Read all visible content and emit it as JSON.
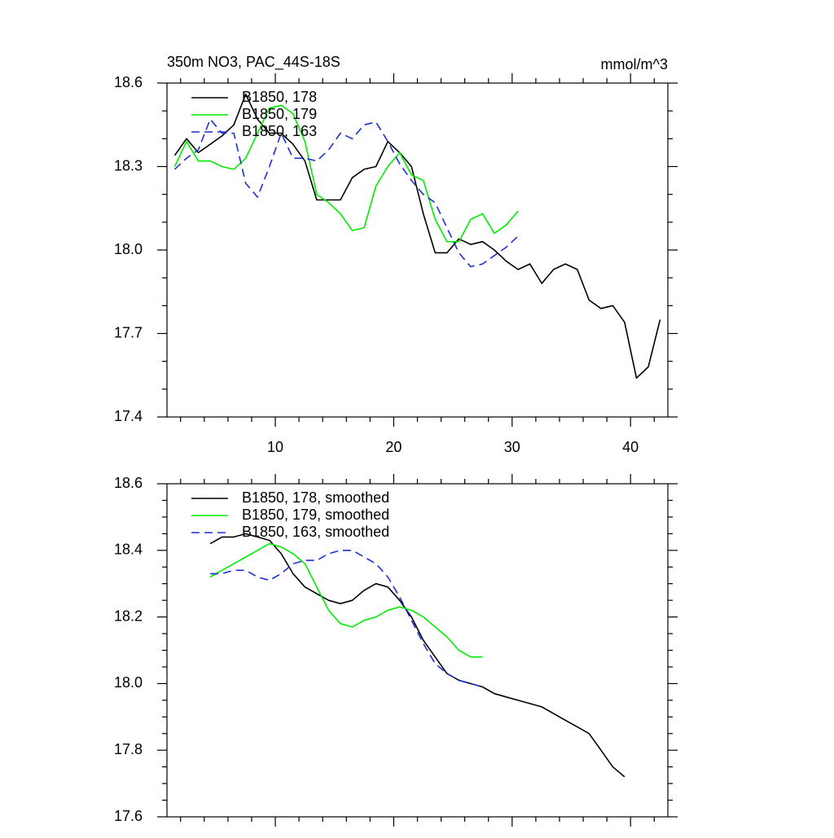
{
  "chart_data": [
    {
      "type": "line",
      "title": "350m NO3, PAC_44S-18S",
      "units_label": "mmol/m^3",
      "x": [
        1.5,
        2.5,
        3.5,
        4.5,
        5.5,
        6.5,
        7.5,
        8.5,
        9.5,
        10.5,
        11.5,
        12.5,
        13.5,
        14.5,
        15.5,
        16.5,
        17.5,
        18.5,
        19.5,
        20.5,
        21.5,
        22.5,
        23.5,
        24.5,
        25.5,
        26.5,
        27.5,
        28.5,
        29.5,
        30.5,
        31.5,
        32.5,
        33.5,
        34.5,
        35.5,
        36.5,
        37.5,
        38.5,
        39.5,
        40.5,
        41.5,
        42.5
      ],
      "series": [
        {
          "name": "B1850, 178",
          "color": "#000000",
          "dash": false,
          "values": [
            18.34,
            18.4,
            18.35,
            18.38,
            18.41,
            18.45,
            18.56,
            18.47,
            18.42,
            18.42,
            18.38,
            18.32,
            18.18,
            18.18,
            18.18,
            18.26,
            18.29,
            18.3,
            18.39,
            18.35,
            18.3,
            18.13,
            17.99,
            17.99,
            18.04,
            18.02,
            18.03,
            18.0,
            17.96,
            17.93,
            17.95,
            17.88,
            17.93,
            17.95,
            17.93,
            17.82,
            17.79,
            17.8,
            17.74,
            17.54,
            17.58,
            17.75
          ]
        },
        {
          "name": "B1850, 179",
          "color": "#00ee00",
          "dash": false,
          "values": [
            18.3,
            18.39,
            18.32,
            18.32,
            18.3,
            18.29,
            18.33,
            18.42,
            18.51,
            18.52,
            18.49,
            18.39,
            18.2,
            18.17,
            18.13,
            18.07,
            18.08,
            18.23,
            18.3,
            18.35,
            18.27,
            18.25,
            18.11,
            18.03,
            18.03,
            18.11,
            18.13,
            18.06,
            18.09,
            18.14,
            null,
            null,
            null,
            null,
            null,
            null,
            null,
            null,
            null,
            null,
            null,
            null
          ]
        },
        {
          "name": "B1850, 163",
          "color": "#1a2fd6",
          "dash": true,
          "values": [
            18.29,
            18.33,
            18.36,
            18.47,
            18.42,
            18.42,
            18.24,
            18.19,
            18.3,
            18.42,
            18.33,
            18.33,
            18.32,
            18.36,
            18.42,
            18.4,
            18.45,
            18.46,
            18.39,
            18.31,
            18.25,
            18.2,
            18.17,
            18.08,
            17.99,
            17.94,
            17.95,
            17.98,
            18.01,
            18.05,
            null,
            null,
            null,
            null,
            null,
            null,
            null,
            null,
            null,
            null,
            null,
            null
          ]
        }
      ],
      "xlim": [
        0.85,
        43.15
      ],
      "xticks": [
        10,
        20,
        30,
        40
      ],
      "show_xtick_labels": true,
      "x_minor_per_major": 5,
      "ylim": [
        17.4,
        18.6
      ],
      "yticks": [
        17.4,
        17.7,
        {
          "value": 18,
          "label": "18.0"
        },
        18.3,
        18.6
      ],
      "y_minor_per_major": 3
    },
    {
      "type": "line",
      "x": [
        4.5,
        5.5,
        6.5,
        7.5,
        8.5,
        9.5,
        10.5,
        11.5,
        12.5,
        13.5,
        14.5,
        15.5,
        16.5,
        17.5,
        18.5,
        19.5,
        20.5,
        21.5,
        22.5,
        23.5,
        24.5,
        25.5,
        26.5,
        27.5,
        28.5,
        29.5,
        30.5,
        31.5,
        32.5,
        33.5,
        34.5,
        35.5,
        36.5,
        37.5,
        38.5,
        39.5
      ],
      "series": [
        {
          "name": "B1850, 178, smoothed",
          "color": "#000000",
          "dash": false,
          "values": [
            18.42,
            18.44,
            18.44,
            18.45,
            18.44,
            18.43,
            18.39,
            18.33,
            18.29,
            18.27,
            18.25,
            18.24,
            18.25,
            18.28,
            18.3,
            18.29,
            18.25,
            18.2,
            18.13,
            18.08,
            18.03,
            18.01,
            18.0,
            17.99,
            17.97,
            17.96,
            17.95,
            17.94,
            17.93,
            17.91,
            17.89,
            17.87,
            17.85,
            17.8,
            17.75,
            17.72
          ]
        },
        {
          "name": "B1850, 179, smoothed",
          "color": "#00ee00",
          "dash": false,
          "values": [
            18.32,
            18.34,
            18.36,
            18.38,
            18.4,
            18.42,
            18.41,
            18.39,
            18.36,
            18.29,
            18.22,
            18.18,
            18.17,
            18.19,
            18.2,
            18.22,
            18.23,
            18.22,
            18.2,
            18.17,
            18.14,
            18.1,
            18.08,
            18.08,
            null,
            null,
            null,
            null,
            null,
            null,
            null,
            null,
            null,
            null,
            null,
            null
          ]
        },
        {
          "name": "B1850, 163, smoothed",
          "color": "#1a2fd6",
          "dash": true,
          "values": [
            18.33,
            18.33,
            18.34,
            18.34,
            18.32,
            18.31,
            18.33,
            18.36,
            18.37,
            18.37,
            18.39,
            18.4,
            18.4,
            18.38,
            18.36,
            18.32,
            18.26,
            18.19,
            18.12,
            18.06,
            18.03,
            18.01,
            18.0,
            17.99,
            null,
            null,
            null,
            null,
            null,
            null,
            null,
            null,
            null,
            null,
            null,
            null
          ]
        }
      ],
      "xlim": [
        0.85,
        43.15
      ],
      "xticks": [
        10,
        20,
        30,
        40
      ],
      "show_xtick_labels": false,
      "x_minor_per_major": 5,
      "ylim": [
        17.6,
        18.6
      ],
      "yticks": [
        17.6,
        17.8,
        {
          "value": 18,
          "label": "18.0"
        },
        18.2,
        18.4,
        18.6
      ],
      "y_minor_per_major": 4
    }
  ]
}
